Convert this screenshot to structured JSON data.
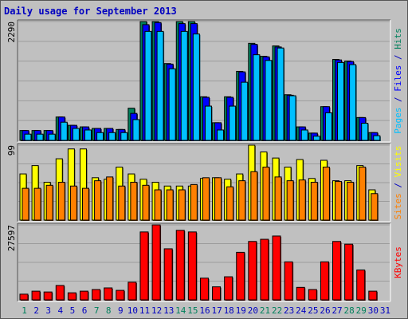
{
  "chart_data": {
    "type": "bar",
    "title": "Daily usage for September 2013",
    "categories": [
      "1",
      "2",
      "3",
      "4",
      "5",
      "6",
      "7",
      "8",
      "9",
      "10",
      "11",
      "12",
      "13",
      "14",
      "15",
      "16",
      "17",
      "18",
      "19",
      "20",
      "21",
      "22",
      "23",
      "24",
      "25",
      "26",
      "27",
      "28",
      "29",
      "30",
      "31"
    ],
    "weekend_categories": [
      "1",
      "7",
      "8",
      "14",
      "15",
      "21",
      "22",
      "28",
      "29"
    ],
    "panels": [
      {
        "id": "hits",
        "max_label": "2290",
        "ymax": 2290,
        "series": [
          {
            "name": "Hits",
            "color": "#00805c",
            "values": [
              190,
              190,
              190,
              450,
              290,
              260,
              230,
              230,
              210,
              620,
              2290,
              2290,
              1480,
              2290,
              2290,
              840,
              340,
              840,
              1330,
              1870,
              1620,
              1820,
              880,
              260,
              140,
              650,
              1560,
              1530,
              440,
              150,
              0
            ]
          },
          {
            "name": "Files",
            "color": "#0000ff",
            "values": [
              190,
              190,
              190,
              450,
              290,
              260,
              230,
              230,
              210,
              520,
              2230,
              2270,
              1470,
              2250,
              2250,
              830,
              340,
              830,
              1320,
              1850,
              1610,
              1800,
              870,
              260,
              140,
              650,
              1550,
              1520,
              440,
              150,
              0
            ]
          },
          {
            "name": "Pages",
            "color": "#00c0ff",
            "values": [
              120,
              120,
              120,
              350,
              230,
              200,
              150,
              150,
              150,
              400,
              2100,
              2100,
              1380,
              2100,
              2050,
              660,
              200,
              660,
              1120,
              1650,
              1540,
              1780,
              860,
              200,
              80,
              530,
              1500,
              1460,
              330,
              90,
              0
            ]
          }
        ],
        "axis_label_parts": [
          {
            "text": "Pages",
            "color": "#00c0ff"
          },
          {
            "text": " / ",
            "color": "#0000c0"
          },
          {
            "text": "Files",
            "color": "#0000ff"
          },
          {
            "text": " / ",
            "color": "#0000c0"
          },
          {
            "text": "Hits",
            "color": "#00805c"
          }
        ]
      },
      {
        "id": "visits",
        "max_label": "99",
        "ymax": 99,
        "series": [
          {
            "name": "Visits",
            "color": "#ffff00",
            "values": [
              61,
              72,
              50,
              81,
              94,
              94,
              56,
              54,
              70,
              61,
              54,
              50,
              45,
              45,
              45,
              55,
              56,
              54,
              61,
              99,
              90,
              82,
              70,
              80,
              55,
              79,
              52,
              52,
              72,
              40,
              0
            ]
          },
          {
            "name": "Sites",
            "color": "#ff8000",
            "values": [
              42,
              42,
              46,
              50,
              45,
              42,
              52,
              57,
              45,
              50,
              46,
              40,
              40,
              40,
              47,
              56,
              56,
              44,
              52,
              64,
              70,
              57,
              52,
              53,
              50,
              70,
              51,
              50,
              70,
              35,
              0
            ]
          }
        ],
        "axis_label_parts": [
          {
            "text": "Sites",
            "color": "#ff8000"
          },
          {
            "text": " / ",
            "color": "#0000c0"
          },
          {
            "text": "Visits",
            "color": "#ffff00"
          }
        ]
      },
      {
        "id": "kbytes",
        "max_label": "27597",
        "ymax": 27597,
        "series": [
          {
            "name": "KBytes",
            "color": "#ff0000",
            "values": [
              2100,
              3200,
              2900,
              5300,
              2600,
              3200,
              3800,
              4400,
              3500,
              6500,
              25000,
              27597,
              18800,
              25600,
              25000,
              8000,
              4800,
              8500,
              17500,
              21500,
              22300,
              23500,
              14000,
              4600,
              3800,
              14000,
              21500,
              20500,
              11000,
              3200,
              0
            ]
          }
        ],
        "axis_label_parts": [
          {
            "text": "KBytes",
            "color": "#ff0000"
          }
        ]
      }
    ],
    "colors": {
      "background": "#c0c0c0",
      "plot_background": "#c0c0c0",
      "title": "#0000c0",
      "grid": "#9c9c9c",
      "weekday_label": "#0000c0",
      "weekend_label": "#00805c",
      "border_dark": "#555555",
      "border_light": "#ffffff"
    }
  }
}
